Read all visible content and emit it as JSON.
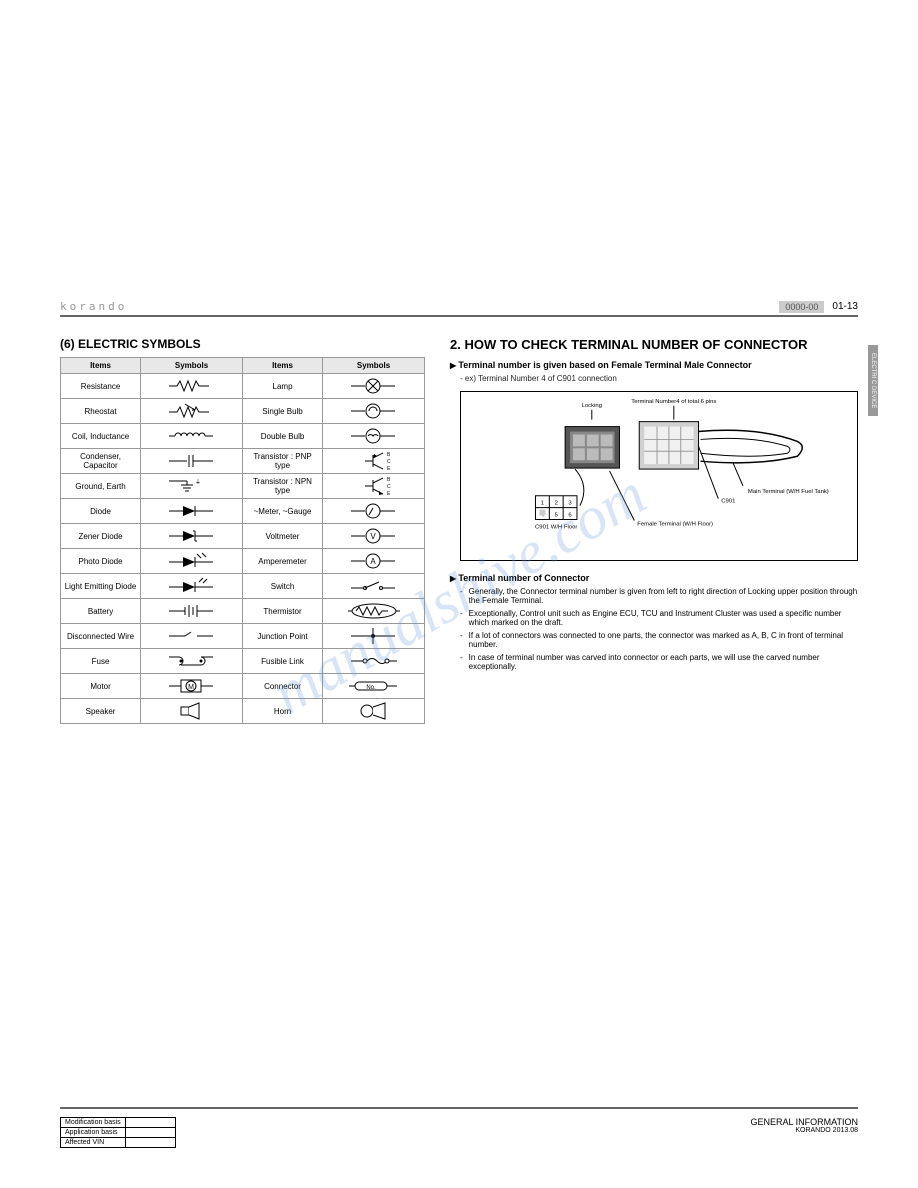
{
  "header": {
    "brand": "korando",
    "code": "0000-00",
    "page": "01-13"
  },
  "tab": {
    "line1": "GENERA L",
    "line2": "ELECTRI C DEVICE"
  },
  "left": {
    "title": "(6) ELECTRIC SYMBOLS",
    "headers": [
      "Items",
      "Symbols",
      "Items",
      "Symbols"
    ],
    "rows": [
      {
        "l": "Resistance",
        "r": "Lamp"
      },
      {
        "l": "Rheostat",
        "r": "Single Bulb"
      },
      {
        "l": "Coil, Inductance",
        "r": "Double Bulb"
      },
      {
        "l": "Condenser, Capacitor",
        "r": "Transistor : PNP type"
      },
      {
        "l": "Ground, Earth",
        "r": "Transistor : NPN type"
      },
      {
        "l": "Diode",
        "r": "~Meter, ~Gauge"
      },
      {
        "l": "Zener Diode",
        "r": "Voltmeter"
      },
      {
        "l": "Photo Diode",
        "r": "Amperemeter"
      },
      {
        "l": "Light Emitting Diode",
        "r": "Switch"
      },
      {
        "l": "Battery",
        "r": "Thermistor"
      },
      {
        "l": "Disconnected Wire",
        "r": "Junction Point"
      },
      {
        "l": "Fuse",
        "r": "Fusible Link"
      },
      {
        "l": "Motor",
        "r": "Connector"
      },
      {
        "l": "Speaker",
        "r": "Horn"
      }
    ]
  },
  "right": {
    "title": "2. HOW TO CHECK TERMINAL NUMBER OF CONNECTOR",
    "sub1": "Terminal number is given based on Female Terminal Male Connector",
    "ex": "ex) Terminal Number 4 of C901 connection",
    "diagram": {
      "locking": "Locking",
      "tnum": "Terminal Number4 of total 6 pins",
      "main": "Main Terminal (W/H Fuel Tank)",
      "female": "Female Terminal (W/H Floor)",
      "c901": "C901",
      "c901b": "C901 W/H Floor",
      "pins": [
        "1",
        "2",
        "3",
        "4",
        "5",
        "6"
      ]
    },
    "sub2": "Terminal number of Connector",
    "bullets": [
      "Generally, the Connector terminal number is given from left to right direction of Locking upper position through the Female Terminal.",
      "Exceptionally, Control unit such as Engine ECU, TCU and Instrument Cluster was used a specific number which marked on the draft.",
      "If a lot of connectors was connected to one parts, the connector was marked as A, B, C in front of terminal number.",
      "In case of terminal number was carved into connector or each parts, we will use the carved number exceptionally."
    ]
  },
  "footer": {
    "rows": [
      "Modification basis",
      "Application basis",
      "Affected VIN"
    ],
    "title": "GENERAL INFORMATION",
    "sub": "KORANDO 2013.08"
  },
  "watermark": "manualshive.com",
  "colors": {
    "border": "#999",
    "thbg": "#e8e8e8",
    "code": "#ccc",
    "dim": "#555",
    "wm": "rgba(100,150,220,0.25)"
  }
}
